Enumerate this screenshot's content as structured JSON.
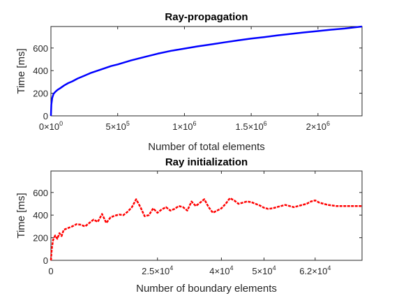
{
  "chart_data": [
    {
      "type": "line",
      "title": "Ray-propagation",
      "xlabel": "Number of total elements",
      "ylabel": "Time [ms]",
      "xlim": [
        0,
        2330000
      ],
      "ylim": [
        0,
        790
      ],
      "grid": false,
      "x_ticks": [
        {
          "value": 0,
          "mant": "0",
          "exp": "0"
        },
        {
          "value": 500000,
          "mant": "5",
          "exp": "5"
        },
        {
          "value": 1000000,
          "mant": "1",
          "exp": "6"
        },
        {
          "value": 1500000,
          "mant": "1.5",
          "exp": "6"
        },
        {
          "value": 2000000,
          "mant": "2",
          "exp": "6"
        }
      ],
      "y_ticks": [
        0,
        200,
        400,
        600
      ],
      "series": [
        {
          "color": "#0000ff",
          "style": "solid",
          "x": [
            0,
            3000,
            10000,
            20000,
            35000,
            50000,
            70000,
            100000,
            130000,
            160000,
            200000,
            250000,
            300000,
            350000,
            400000,
            450000,
            500000,
            600000,
            700000,
            800000,
            900000,
            1000000,
            1100000,
            1200000,
            1300000,
            1400000,
            1500000,
            1600000,
            1700000,
            1800000,
            1900000,
            2000000,
            2100000,
            2200000,
            2330000
          ],
          "y": [
            0,
            100,
            160,
            195,
            215,
            230,
            245,
            270,
            290,
            305,
            330,
            355,
            380,
            400,
            420,
            440,
            455,
            490,
            520,
            550,
            575,
            595,
            615,
            632,
            650,
            667,
            683,
            697,
            712,
            725,
            738,
            750,
            762,
            772,
            790
          ]
        }
      ]
    },
    {
      "type": "line",
      "title": "Ray initialization",
      "xlabel": "Number of boundary elements",
      "ylabel": "Time [ms]",
      "xlim": [
        0,
        73000
      ],
      "ylim": [
        0,
        790
      ],
      "grid": false,
      "x_ticks": [
        {
          "value": 0,
          "mant": "0",
          "exp": ""
        },
        {
          "value": 25000,
          "mant": "2.5",
          "exp": "4"
        },
        {
          "value": 40000,
          "mant": "4",
          "exp": "4"
        },
        {
          "value": 50000,
          "mant": "5",
          "exp": "4"
        },
        {
          "value": 62000,
          "mant": "6.2",
          "exp": "4"
        }
      ],
      "y_ticks": [
        0,
        200,
        400,
        600
      ],
      "series": [
        {
          "color": "#ff0000",
          "style": "dashed",
          "x": [
            0,
            200,
            500,
            1000,
            1500,
            2000,
            2500,
            3000,
            4000,
            5000,
            6000,
            7000,
            8000,
            9000,
            10000,
            11000,
            12000,
            13000,
            14000,
            15000,
            16000,
            17000,
            18000,
            19000,
            20000,
            21000,
            22000,
            23000,
            24000,
            25000,
            26000,
            27000,
            28000,
            29000,
            30000,
            31000,
            32000,
            33000,
            34000,
            35000,
            36000,
            37000,
            38000,
            39000,
            40000,
            41000,
            42000,
            43000,
            44000,
            45000,
            46000,
            47000,
            48000,
            49000,
            50000,
            51000,
            52000,
            53000,
            54000,
            55000,
            56000,
            57000,
            58000,
            59000,
            60000,
            61000,
            62000,
            63000,
            64000,
            65000,
            66000,
            67000,
            68000,
            69000,
            70000,
            71000,
            72000,
            73000
          ],
          "y": [
            0,
            100,
            180,
            220,
            190,
            240,
            215,
            270,
            285,
            300,
            320,
            315,
            300,
            330,
            360,
            340,
            410,
            330,
            380,
            395,
            405,
            400,
            430,
            470,
            540,
            470,
            390,
            400,
            460,
            420,
            450,
            470,
            440,
            455,
            480,
            470,
            440,
            520,
            480,
            510,
            540,
            470,
            420,
            440,
            460,
            500,
            550,
            530,
            500,
            510,
            520,
            515,
            500,
            485,
            465,
            455,
            460,
            470,
            480,
            490,
            480,
            470,
            480,
            490,
            500,
            520,
            530,
            510,
            500,
            490,
            485,
            480,
            480,
            480,
            480,
            480,
            480,
            480
          ]
        }
      ]
    }
  ]
}
